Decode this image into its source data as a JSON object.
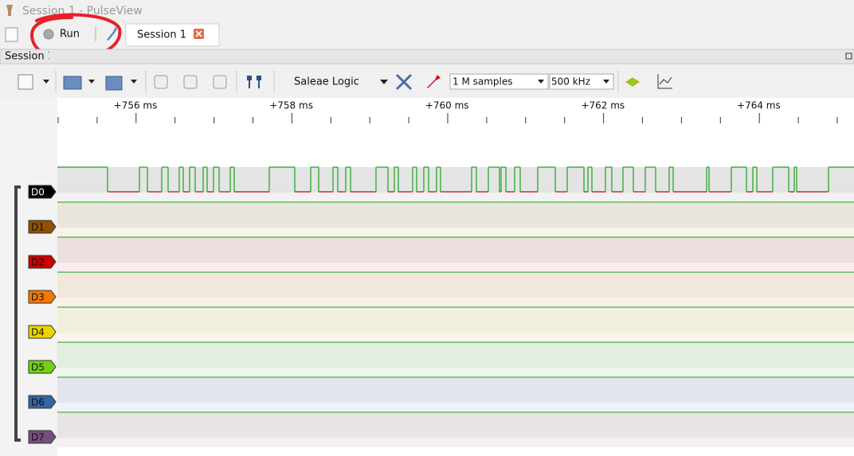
{
  "window": {
    "title": "Session 1 - PulseView"
  },
  "tabs": {
    "run": "Run",
    "session": "Session 1"
  },
  "dock": {
    "title": "Session 1"
  },
  "toolbar": {
    "device": "Saleae Logic",
    "samples": "1 M samples",
    "rate": "500 kHz"
  },
  "ruler": {
    "labels": [
      "+756 ms",
      "+758 ms",
      "+760 ms",
      "+762 ms",
      "+764 ms"
    ]
  },
  "channels": [
    "D0",
    "D1",
    "D2",
    "D3",
    "D4",
    "D5",
    "D6",
    "D7"
  ]
}
